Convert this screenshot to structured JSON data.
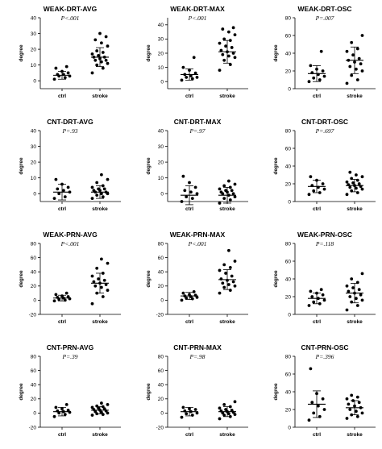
{
  "chart_data": [
    {
      "type": "scatter",
      "title": "WEAK-DRT-AVG",
      "pvalue": "P<.001",
      "ylabel": "degree",
      "categories": [
        "ctrl",
        "stroke"
      ],
      "yticks": [
        "0",
        "10",
        "20",
        "30",
        "40"
      ],
      "ylim": [
        -5,
        40
      ],
      "groups": [
        {
          "name": "ctrl",
          "values": [
            1,
            2,
            3,
            3,
            4,
            4,
            5,
            6,
            8,
            9
          ],
          "mean": 3.5,
          "sd": 2.5
        },
        {
          "name": "stroke",
          "values": [
            5,
            8,
            10,
            11,
            12,
            13,
            13,
            14,
            15,
            15,
            16,
            17,
            18,
            19,
            22,
            24,
            26,
            28,
            30
          ],
          "mean": 15,
          "sd": 6
        }
      ]
    },
    {
      "type": "scatter",
      "title": "WEAK-DRT-MAX",
      "pvalue": "P<.001",
      "ylabel": "degree",
      "categories": [
        "ctrl",
        "stroke"
      ],
      "yticks": [
        "0",
        "10",
        "20",
        "30",
        "40"
      ],
      "ylim": [
        -5,
        45
      ],
      "groups": [
        {
          "name": "ctrl",
          "values": [
            1,
            2,
            3,
            3,
            4,
            5,
            6,
            8,
            10,
            17
          ],
          "mean": 5,
          "sd": 4
        },
        {
          "name": "stroke",
          "values": [
            8,
            12,
            15,
            17,
            18,
            19,
            20,
            21,
            22,
            24,
            25,
            27,
            29,
            30,
            33,
            35,
            37,
            38
          ],
          "mean": 21,
          "sd": 8
        }
      ]
    },
    {
      "type": "scatter",
      "title": "WEAK-DRT-OSC",
      "pvalue": "P=.007",
      "ylabel": "degree",
      "categories": [
        "ctrl",
        "stroke"
      ],
      "yticks": [
        "0",
        "20",
        "40",
        "60",
        "80"
      ],
      "ylim": [
        0,
        80
      ],
      "groups": [
        {
          "name": "ctrl",
          "values": [
            8,
            10,
            12,
            14,
            16,
            18,
            20,
            22,
            26,
            42
          ],
          "mean": 17,
          "sd": 9
        },
        {
          "name": "stroke",
          "values": [
            6,
            10,
            15,
            20,
            22,
            25,
            28,
            30,
            32,
            34,
            38,
            42,
            45,
            52,
            60
          ],
          "mean": 32,
          "sd": 15
        }
      ]
    },
    {
      "type": "scatter",
      "title": "CNT-DRT-AVG",
      "pvalue": "P=.93",
      "ylabel": "degree",
      "categories": [
        "ctrl",
        "stroke"
      ],
      "yticks": [
        "0",
        "10",
        "20",
        "30",
        "40"
      ],
      "ylim": [
        -5,
        40
      ],
      "groups": [
        {
          "name": "ctrl",
          "values": [
            -3,
            -2,
            0,
            1,
            2,
            3,
            4,
            6,
            9
          ],
          "mean": 1,
          "sd": 5
        },
        {
          "name": "stroke",
          "values": [
            -3,
            -2,
            -1,
            0,
            0,
            1,
            1,
            2,
            2,
            3,
            3,
            4,
            5,
            7,
            9,
            12
          ],
          "mean": 1,
          "sd": 4
        }
      ]
    },
    {
      "type": "scatter",
      "title": "CNT-DRT-MAX",
      "pvalue": "P=.97",
      "ylabel": "degree",
      "categories": [
        "ctrl",
        "stroke"
      ],
      "yticks": [
        "0",
        "10",
        "20",
        "30",
        "40"
      ],
      "ylim": [
        -5,
        40
      ],
      "groups": [
        {
          "name": "ctrl",
          "values": [
            -5,
            -3,
            -2,
            0,
            1,
            2,
            4,
            7,
            11
          ],
          "mean": -1,
          "sd": 6
        },
        {
          "name": "stroke",
          "values": [
            -6,
            -4,
            -3,
            -2,
            -1,
            0,
            0,
            1,
            1,
            2,
            2,
            3,
            4,
            5,
            6,
            8
          ],
          "mean": -1,
          "sd": 5
        }
      ]
    },
    {
      "type": "scatter",
      "title": "CNT-DRT-OSC",
      "pvalue": "P=.697",
      "ylabel": "degree",
      "categories": [
        "ctrl",
        "stroke"
      ],
      "yticks": [
        "0",
        "20",
        "40",
        "60",
        "80"
      ],
      "ylim": [
        0,
        80
      ],
      "groups": [
        {
          "name": "ctrl",
          "values": [
            8,
            10,
            12,
            14,
            16,
            18,
            20,
            24,
            28
          ],
          "mean": 17,
          "sd": 7
        },
        {
          "name": "stroke",
          "values": [
            8,
            10,
            12,
            14,
            15,
            16,
            17,
            18,
            19,
            20,
            21,
            22,
            24,
            26,
            28,
            30,
            33
          ],
          "mean": 18,
          "sd": 7
        }
      ]
    },
    {
      "type": "scatter",
      "title": "WEAK-PRN-AVG",
      "pvalue": "P<.001",
      "ylabel": "degree",
      "categories": [
        "ctrl",
        "stroke"
      ],
      "yticks": [
        "-20",
        "0",
        "20",
        "40",
        "60",
        "80"
      ],
      "ylim": [
        -20,
        80
      ],
      "groups": [
        {
          "name": "ctrl",
          "values": [
            -1,
            0,
            1,
            2,
            3,
            4,
            5,
            6,
            8,
            10
          ],
          "mean": 3,
          "sd": 4
        },
        {
          "name": "stroke",
          "values": [
            -5,
            5,
            10,
            14,
            18,
            20,
            22,
            24,
            26,
            28,
            30,
            34,
            38,
            45,
            52,
            58
          ],
          "mean": 24,
          "sd": 14
        }
      ]
    },
    {
      "type": "scatter",
      "title": "WEAK-PRN-MAX",
      "pvalue": "P<.001",
      "ylabel": "degree",
      "categories": [
        "ctrl",
        "stroke"
      ],
      "yticks": [
        "-20",
        "0",
        "20",
        "40",
        "60",
        "80"
      ],
      "ylim": [
        -20,
        80
      ],
      "groups": [
        {
          "name": "ctrl",
          "values": [
            0,
            2,
            3,
            4,
            5,
            6,
            7,
            8,
            10,
            12
          ],
          "mean": 6,
          "sd": 5
        },
        {
          "name": "stroke",
          "values": [
            10,
            14,
            18,
            20,
            22,
            24,
            26,
            28,
            30,
            34,
            38,
            42,
            46,
            50,
            55,
            70
          ],
          "mean": 29,
          "sd": 14
        }
      ]
    },
    {
      "type": "scatter",
      "title": "WEAK-PRN-OSC",
      "pvalue": "P=.118",
      "ylabel": "degree",
      "categories": [
        "ctrl",
        "stroke"
      ],
      "yticks": [
        "0",
        "20",
        "40",
        "60",
        "80"
      ],
      "ylim": [
        0,
        80
      ],
      "groups": [
        {
          "name": "ctrl",
          "values": [
            10,
            12,
            14,
            16,
            18,
            20,
            22,
            24,
            26,
            28
          ],
          "mean": 18,
          "sd": 6
        },
        {
          "name": "stroke",
          "values": [
            5,
            10,
            14,
            16,
            18,
            20,
            22,
            24,
            26,
            28,
            30,
            32,
            36,
            40,
            46
          ],
          "mean": 24,
          "sd": 11
        }
      ]
    },
    {
      "type": "scatter",
      "title": "CNT-PRN-AVG",
      "pvalue": "P=.39",
      "ylabel": "degree",
      "categories": [
        "ctrl",
        "stroke"
      ],
      "yticks": [
        "-20",
        "0",
        "20",
        "40",
        "60",
        "80"
      ],
      "ylim": [
        -20,
        80
      ],
      "groups": [
        {
          "name": "ctrl",
          "values": [
            -5,
            -2,
            0,
            1,
            2,
            3,
            4,
            6,
            8,
            12
          ],
          "mean": 2,
          "sd": 6
        },
        {
          "name": "stroke",
          "values": [
            -3,
            -2,
            -1,
            0,
            1,
            2,
            3,
            4,
            5,
            6,
            7,
            8,
            9,
            10,
            12,
            14
          ],
          "mean": 4,
          "sd": 5
        }
      ]
    },
    {
      "type": "scatter",
      "title": "CNT-PRN-MAX",
      "pvalue": "P=.98",
      "ylabel": "degree",
      "categories": [
        "ctrl",
        "stroke"
      ],
      "yticks": [
        "-20",
        "0",
        "20",
        "40",
        "60",
        "80"
      ],
      "ylim": [
        -20,
        80
      ],
      "groups": [
        {
          "name": "ctrl",
          "values": [
            -6,
            -3,
            -1,
            0,
            2,
            3,
            5,
            6,
            8
          ],
          "mean": 2,
          "sd": 6
        },
        {
          "name": "stroke",
          "values": [
            -8,
            -5,
            -3,
            -2,
            -1,
            0,
            1,
            2,
            3,
            4,
            5,
            7,
            9,
            12,
            16
          ],
          "mean": 2,
          "sd": 7
        }
      ]
    },
    {
      "type": "scatter",
      "title": "CNT-PRN-OSC",
      "pvalue": "P=.396",
      "ylabel": "degree",
      "categories": [
        "ctrl",
        "stroke"
      ],
      "yticks": [
        "0",
        "20",
        "40",
        "60",
        "80"
      ],
      "ylim": [
        0,
        80
      ],
      "groups": [
        {
          "name": "ctrl",
          "values": [
            8,
            12,
            16,
            20,
            24,
            28,
            32,
            38,
            66
          ],
          "mean": 26,
          "sd": 15
        },
        {
          "name": "stroke",
          "values": [
            10,
            12,
            14,
            16,
            18,
            20,
            22,
            24,
            26,
            28,
            30,
            32,
            34,
            36
          ],
          "mean": 22,
          "sd": 8
        }
      ]
    }
  ]
}
